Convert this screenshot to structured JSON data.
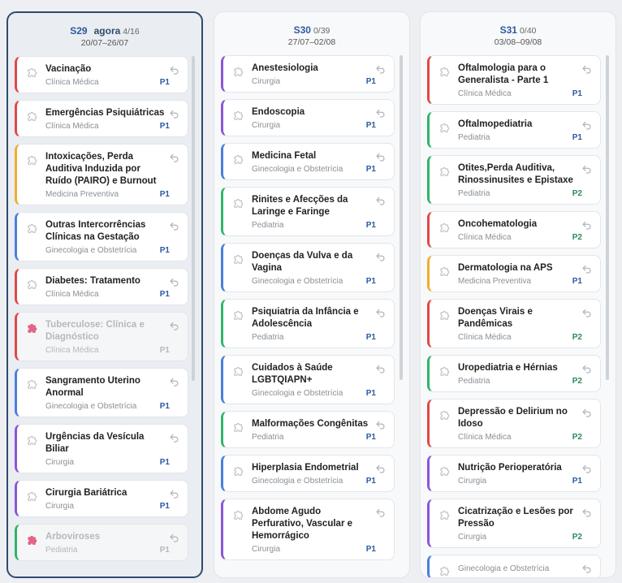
{
  "colors": {
    "Clínica Médica": "#e04848",
    "Cirurgia": "#8a56d8",
    "Ginecologia e Obstetrícia": "#4a7fdc",
    "Pediatria": "#2fb56a",
    "Medicina Preventiva": "#f0ad2e"
  },
  "columns": [
    {
      "name": "S29",
      "now": "agora",
      "count": "4/16",
      "dates": "20/07–26/07",
      "current": true,
      "cards": [
        {
          "title": "Vacinação",
          "spec": "Clínica Médica",
          "prio": "P1"
        },
        {
          "title": "Emergências Psiquiátricas",
          "spec": "Clínica Médica",
          "prio": "P1"
        },
        {
          "title": "Intoxicações, Perda Auditiva Induzida por Ruído (PAIRO) e Burnout",
          "spec": "Medicina Preventiva",
          "prio": "P1"
        },
        {
          "title": "Outras Intercorrências Clínicas na Gestação",
          "spec": "Ginecologia e Obstetrícia",
          "prio": "P1"
        },
        {
          "title": "Diabetes: Tratamento",
          "spec": "Clínica Médica",
          "prio": "P1"
        },
        {
          "title": "Tuberculose: Clínica e Diagnóstico",
          "spec": "Clínica Médica",
          "prio": "P1",
          "done": true
        },
        {
          "title": "Sangramento Uterino Anormal",
          "spec": "Ginecologia e Obstetrícia",
          "prio": "P1"
        },
        {
          "title": "Urgências da Vesícula Biliar",
          "spec": "Cirurgia",
          "prio": "P1"
        },
        {
          "title": "Cirurgia Bariátrica",
          "spec": "Cirurgia",
          "prio": "P1"
        },
        {
          "title": "Arboviroses",
          "spec": "Pediatria",
          "prio": "P1",
          "done": true
        }
      ]
    },
    {
      "name": "S30",
      "now": "",
      "count": "0/39",
      "dates": "27/07–02/08",
      "current": false,
      "cards": [
        {
          "title": "Anestesiologia",
          "spec": "Cirurgia",
          "prio": "P1"
        },
        {
          "title": "Endoscopia",
          "spec": "Cirurgia",
          "prio": "P1"
        },
        {
          "title": "Medicina Fetal",
          "spec": "Ginecologia e Obstetrícia",
          "prio": "P1"
        },
        {
          "title": "Rinites e Afecções da Laringe e Faringe",
          "spec": "Pediatria",
          "prio": "P1"
        },
        {
          "title": "Doenças da Vulva e da Vagina",
          "spec": "Ginecologia e Obstetrícia",
          "prio": "P1"
        },
        {
          "title": "Psiquiatria da Infância e Adolescência",
          "spec": "Pediatria",
          "prio": "P1"
        },
        {
          "title": "Cuidados à Saúde LGBTQIAPN+",
          "spec": "Ginecologia e Obstetrícia",
          "prio": "P1"
        },
        {
          "title": "Malformações Congênitas",
          "spec": "Pediatria",
          "prio": "P1"
        },
        {
          "title": "Hiperplasia Endometrial",
          "spec": "Ginecologia e Obstetrícia",
          "prio": "P1"
        },
        {
          "title": "Abdome Agudo Perfurativo, Vascular e Hemorrágico",
          "spec": "Cirurgia",
          "prio": "P1"
        }
      ]
    },
    {
      "name": "S31",
      "now": "",
      "count": "0/40",
      "dates": "03/08–09/08",
      "current": false,
      "cards": [
        {
          "title": "Oftalmologia para o Generalista - Parte 1",
          "spec": "Clínica Médica",
          "prio": "P1"
        },
        {
          "title": "Oftalmopediatria",
          "spec": "Pediatria",
          "prio": "P1"
        },
        {
          "title": "Otites,Perda Auditiva, Rinossinusites e Epistaxe",
          "spec": "Pediatria",
          "prio": "P2"
        },
        {
          "title": "Oncohematologia",
          "spec": "Clínica Médica",
          "prio": "P2"
        },
        {
          "title": "Dermatologia na APS",
          "spec": "Medicina Preventiva",
          "prio": "P1"
        },
        {
          "title": "Doenças Virais e Pandêmicas",
          "spec": "Clínica Médica",
          "prio": "P2"
        },
        {
          "title": "Uropediatria e Hérnias",
          "spec": "Pediatria",
          "prio": "P2"
        },
        {
          "title": "Depressão e Delirium no Idoso",
          "spec": "Clínica Médica",
          "prio": "P2"
        },
        {
          "title": "Nutrição Perioperatória",
          "spec": "Cirurgia",
          "prio": "P1"
        },
        {
          "title": "Cicatrização e Lesões por Pressão",
          "spec": "Cirurgia",
          "prio": "P2"
        },
        {
          "title": "",
          "spec": "Ginecologia e Obstetrícia",
          "prio": ""
        }
      ]
    }
  ]
}
